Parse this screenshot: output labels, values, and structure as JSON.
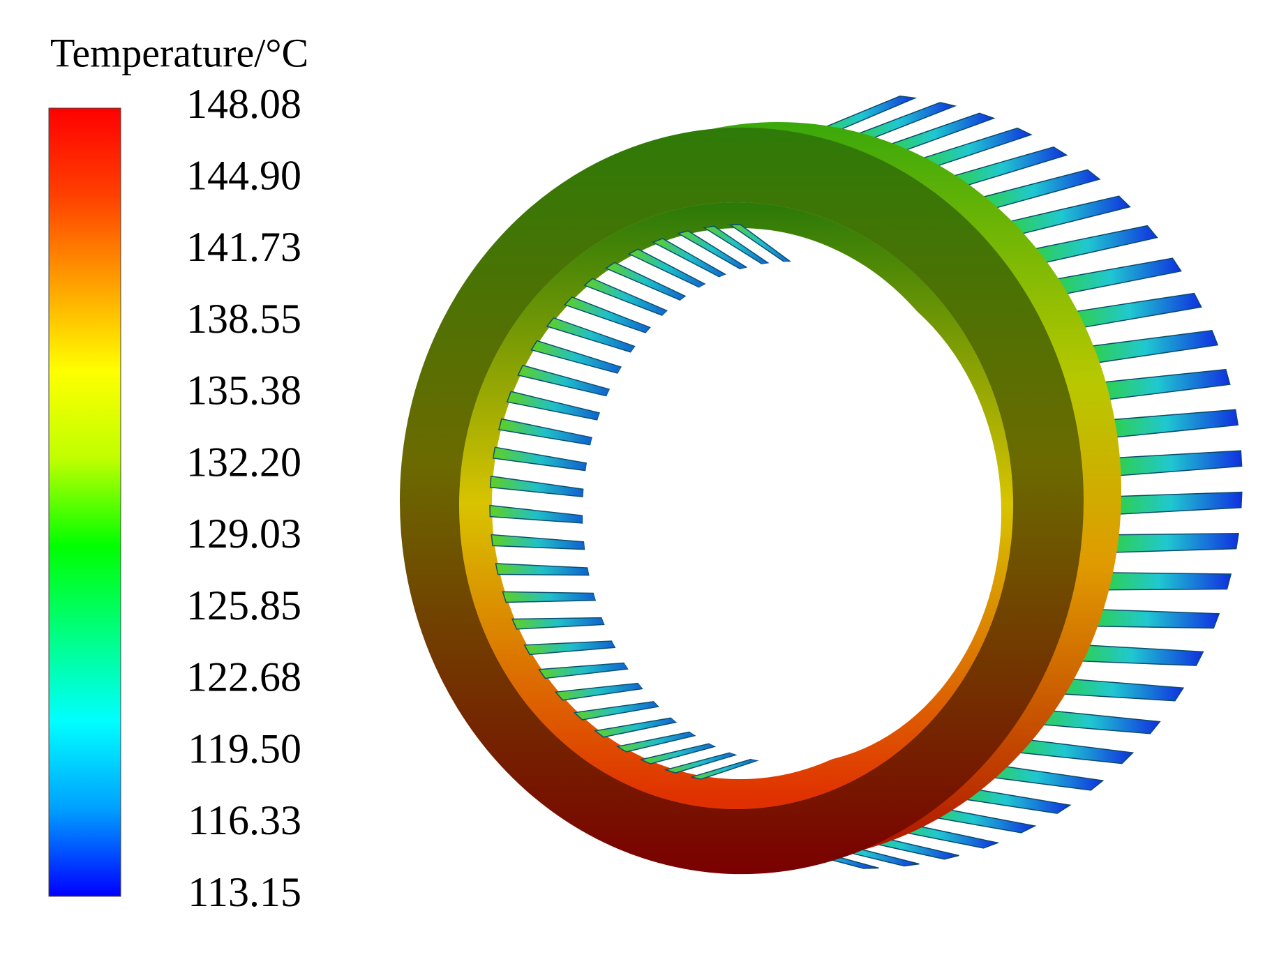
{
  "chart_data": {
    "type": "contour",
    "colorbar": {
      "title": "Temperature/°C",
      "lim": [
        113.15,
        148.08
      ],
      "ticks": [
        148.08,
        {
          "value": 144.9,
          "label": "144.90"
        },
        141.73,
        138.55,
        135.38,
        {
          "value": 132.2,
          "label": "132.20"
        },
        129.03,
        125.85,
        122.68,
        {
          "value": 119.5,
          "label": "119.50"
        },
        116.33,
        113.15
      ],
      "colorscale": [
        "#0000ff",
        "#00a0ff",
        "#00ffff",
        "#00ff80",
        "#00ff00",
        "#c0ff00",
        "#ffff00",
        "#ffa000",
        "#ff4000",
        "#ff0000"
      ]
    }
  }
}
